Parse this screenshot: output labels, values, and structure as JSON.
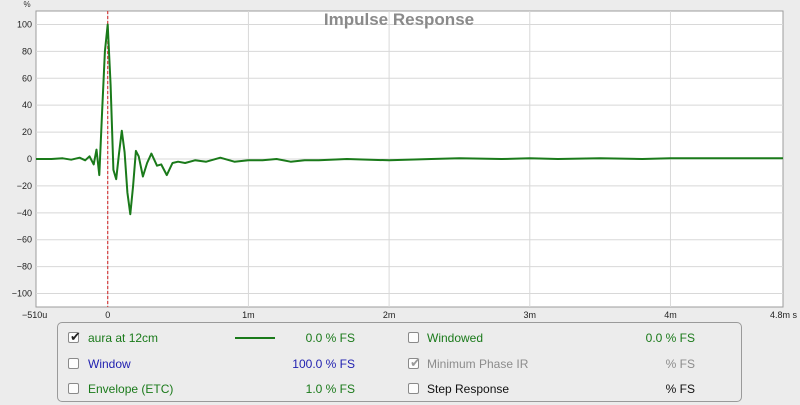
{
  "chart_data": {
    "type": "line",
    "title": "Impulse Response",
    "ylabel": "%",
    "xlabel": "",
    "xlim_ms": [
      -0.51,
      4.8
    ],
    "ylim": [
      -110,
      110
    ],
    "grid": true,
    "y_ticks": [
      100,
      80,
      60,
      40,
      20,
      0,
      -20,
      -40,
      -60,
      -80,
      -100
    ],
    "y_tick_labels": [
      "100",
      "80",
      "60",
      "40",
      "20",
      "0",
      "−20",
      "−40",
      "−60",
      "−80",
      "−100"
    ],
    "x_ticks_ms": [
      -0.51,
      0,
      1,
      2,
      3,
      4,
      4.8
    ],
    "x_tick_labels": [
      "−510u",
      "0",
      "1m",
      "2m",
      "3m",
      "4m",
      "4.8m s"
    ],
    "marker_x_ms": 0,
    "marker_color": "#d21f1f",
    "series": [
      {
        "name": "aura at 12cm",
        "color": "#1a7a1a",
        "x": [
          -0.51,
          -0.4,
          -0.32,
          -0.26,
          -0.2,
          -0.16,
          -0.13,
          -0.1,
          -0.08,
          -0.06,
          -0.04,
          -0.02,
          0,
          0.02,
          0.04,
          0.06,
          0.08,
          0.1,
          0.12,
          0.14,
          0.16,
          0.18,
          0.2,
          0.22,
          0.25,
          0.28,
          0.31,
          0.35,
          0.38,
          0.42,
          0.46,
          0.5,
          0.55,
          0.62,
          0.7,
          0.8,
          0.9,
          1.0,
          1.1,
          1.2,
          1.3,
          1.4,
          1.5,
          1.7,
          2.0,
          2.3,
          2.5,
          2.8,
          3.0,
          3.2,
          3.5,
          3.8,
          4.0,
          4.3,
          4.6,
          4.8
        ],
        "y": [
          0,
          0,
          0.5,
          -0.5,
          1,
          -1,
          2,
          -4,
          7,
          -12,
          35,
          80,
          100,
          55,
          -8,
          -15,
          4,
          21,
          5,
          -25,
          -41,
          -20,
          6,
          2,
          -13,
          -3,
          4,
          -5,
          -4,
          -12,
          -3,
          -2,
          -3,
          -1,
          -2,
          1,
          -2,
          -1,
          -1,
          0,
          -2,
          -1,
          -1,
          0,
          -1,
          0,
          0.5,
          0,
          0.5,
          0,
          0.5,
          0,
          0.5,
          0.5,
          0.5,
          0.5
        ]
      }
    ]
  },
  "legend": {
    "items": [
      {
        "label": "aura at 12cm",
        "value": "0.0 % FS",
        "checked": true,
        "enabled": true,
        "label_color": "#1a7a1a",
        "value_color": "#1a7a1a",
        "swatch": "#1a7a1a"
      },
      {
        "label": "Windowed",
        "value": "0.0 % FS",
        "checked": false,
        "enabled": true,
        "label_color": "#1a7a1a",
        "value_color": "#1a7a1a"
      },
      {
        "label": "Window",
        "value": "100.0 % FS",
        "checked": false,
        "enabled": true,
        "label_color": "#1f1fb0",
        "value_color": "#1f1fb0"
      },
      {
        "label": "Minimum Phase IR",
        "value": "% FS",
        "checked": true,
        "enabled": false,
        "label_color": "#8c8c8c",
        "value_color": "#8c8c8c"
      },
      {
        "label": "Envelope (ETC)",
        "value": "1.0 % FS",
        "checked": false,
        "enabled": true,
        "label_color": "#1a7a1a",
        "value_color": "#1a7a1a"
      },
      {
        "label": "Step Response",
        "value": "% FS",
        "checked": false,
        "enabled": true,
        "label_color": "#111111",
        "value_color": "#111111"
      }
    ]
  }
}
